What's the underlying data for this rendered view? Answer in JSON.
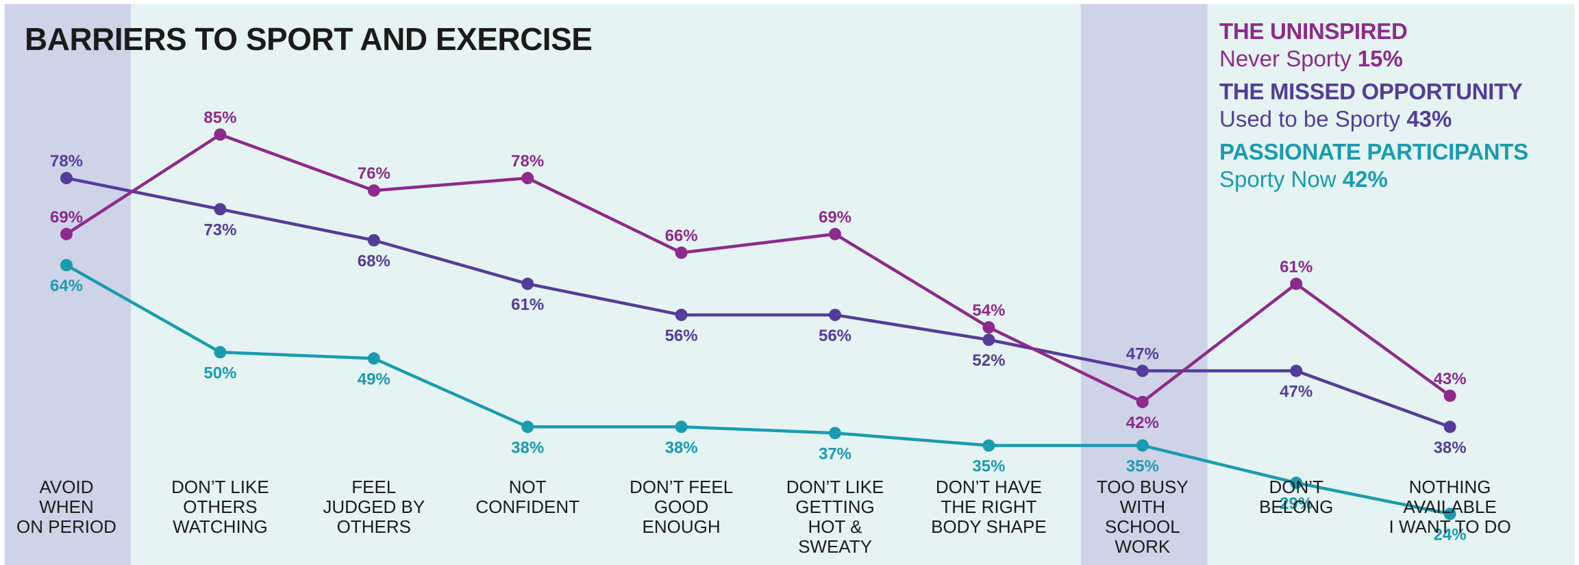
{
  "title": "BARRIERS TO SPORT AND EXERCISE",
  "legend": [
    {
      "name": "THE UNINSPIRED",
      "sub": "Never Sporty",
      "pct": "15%",
      "color": "#8e2a8c"
    },
    {
      "name": "THE MISSED OPPORTUNITY",
      "sub": "Used to be Sporty",
      "pct": "43%",
      "color": "#553c9a"
    },
    {
      "name": "PASSIONATE PARTICIPANTS",
      "sub": "Sporty Now",
      "pct": "42%",
      "color": "#1a9bb0"
    }
  ],
  "colors": {
    "background": "#e5f4f2",
    "highlight_band": "#cfd3e8",
    "uninspired": "#8e2a8c",
    "missed": "#553c9a",
    "passionate": "#1a9bb0"
  },
  "chart_data": {
    "type": "line",
    "title": "BARRIERS TO SPORT AND EXERCISE",
    "categories": [
      [
        "AVOID",
        "WHEN",
        "ON PERIOD"
      ],
      [
        "DON’T LIKE",
        "OTHERS",
        "WATCHING"
      ],
      [
        "FEEL",
        "JUDGED BY",
        "OTHERS"
      ],
      [
        "NOT",
        "CONFIDENT"
      ],
      [
        "DON’T FEEL",
        "GOOD",
        "ENOUGH"
      ],
      [
        "DON’T LIKE",
        "GETTING",
        "HOT &",
        "SWEATY"
      ],
      [
        "DON’T HAVE",
        "THE RIGHT",
        "BODY SHAPE"
      ],
      [
        "TOO BUSY",
        "WITH",
        "SCHOOL",
        "WORK"
      ],
      [
        "DON’T",
        "BELONG"
      ],
      [
        "NOTHING",
        "AVAILABLE",
        "I WANT TO DO"
      ]
    ],
    "highlighted_categories": [
      0,
      7
    ],
    "unit": "%",
    "ylim": [
      0,
      100
    ],
    "grid": false,
    "legend_position": "top-right",
    "series": [
      {
        "name": "THE UNINSPIRED",
        "color": "#8e2a8c",
        "values": [
          69,
          85,
          76,
          78,
          66,
          69,
          54,
          42,
          61,
          43
        ],
        "label_pos": [
          "above",
          "above",
          "above",
          "above",
          "above",
          "above",
          "above",
          "below",
          "above",
          "above"
        ]
      },
      {
        "name": "THE MISSED OPPORTUNITY",
        "color": "#553c9a",
        "values": [
          78,
          73,
          68,
          61,
          56,
          56,
          52,
          47,
          47,
          38
        ],
        "label_pos": [
          "above",
          "below",
          "below",
          "below",
          "below",
          "below",
          "below",
          "above",
          "below",
          "below"
        ]
      },
      {
        "name": "PASSIONATE PARTICIPANTS",
        "color": "#1a9bb0",
        "values": [
          64,
          50,
          49,
          38,
          38,
          37,
          35,
          35,
          29,
          24
        ],
        "label_pos": [
          "below",
          "below",
          "below",
          "below",
          "below",
          "below",
          "below",
          "below",
          "below",
          "below"
        ]
      }
    ]
  }
}
